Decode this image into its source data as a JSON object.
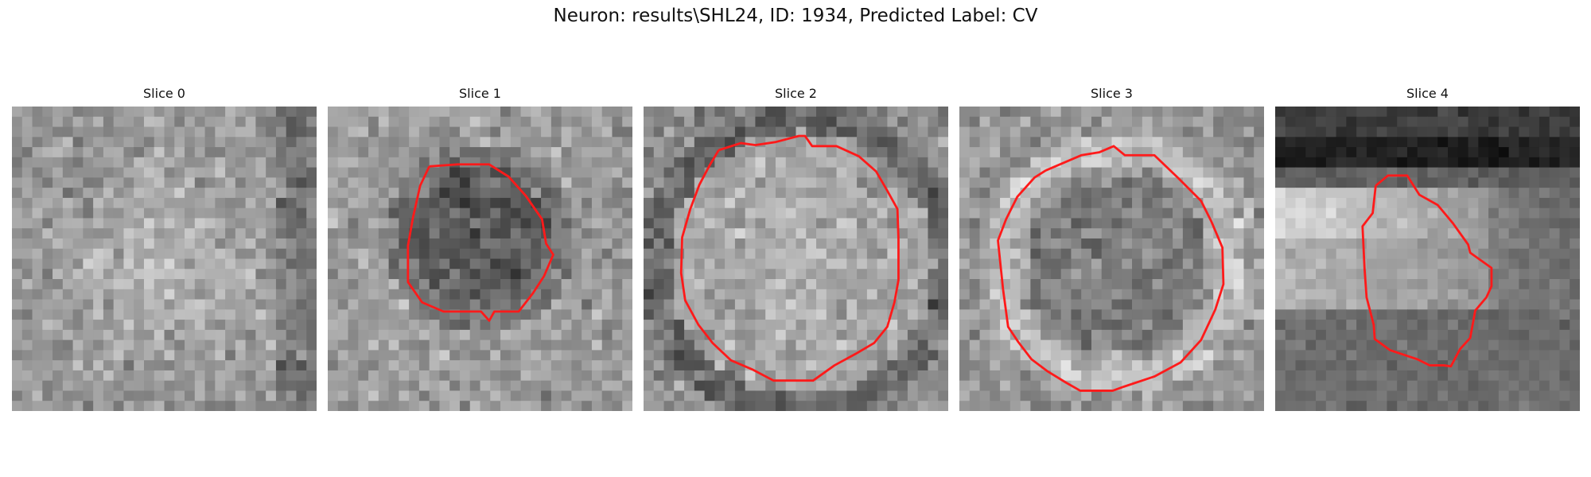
{
  "figure": {
    "title": "Neuron: results\\SHL24, ID: 1934, Predicted Label: CV",
    "contour_color": "#ff1a1a",
    "colormap": "gray",
    "grid_size": 30
  },
  "slices": [
    {
      "title": "Slice 0",
      "has_contour": false,
      "contour_grid": []
    },
    {
      "title": "Slice 1",
      "has_contour": true,
      "contour_grid": [
        [
          10,
          5.9
        ],
        [
          12.8,
          5.7
        ],
        [
          15.9,
          5.7
        ],
        [
          17.8,
          6.9
        ],
        [
          19.5,
          8.8
        ],
        [
          21.1,
          11.1
        ],
        [
          21.5,
          13.5
        ],
        [
          22.2,
          14.6
        ],
        [
          21.3,
          16.7
        ],
        [
          20.2,
          18.4
        ],
        [
          18.8,
          20.2
        ],
        [
          16.4,
          20.2
        ],
        [
          15.9,
          21.1
        ],
        [
          15.1,
          20.2
        ],
        [
          11.4,
          20.2
        ],
        [
          9.3,
          19.3
        ],
        [
          7.9,
          17.3
        ],
        [
          7.9,
          13.7
        ],
        [
          8.4,
          10.9
        ],
        [
          9.1,
          7.8
        ],
        [
          10,
          5.9
        ]
      ]
    },
    {
      "title": "Slice 2",
      "has_contour": true,
      "contour_grid": [
        [
          7.4,
          4.3
        ],
        [
          9.6,
          3.6
        ],
        [
          11,
          3.8
        ],
        [
          13,
          3.5
        ],
        [
          15.3,
          2.9
        ],
        [
          15.9,
          2.9
        ],
        [
          16.6,
          3.9
        ],
        [
          19,
          3.9
        ],
        [
          21.2,
          4.9
        ],
        [
          22.9,
          6.4
        ],
        [
          24,
          8.3
        ],
        [
          25,
          10.1
        ],
        [
          25.1,
          13.1
        ],
        [
          25.1,
          17.1
        ],
        [
          24.7,
          19.3
        ],
        [
          24,
          21.7
        ],
        [
          22.7,
          23.3
        ],
        [
          21,
          24.3
        ],
        [
          18.8,
          25.5
        ],
        [
          16.7,
          27
        ],
        [
          14.8,
          27
        ],
        [
          12.8,
          27
        ],
        [
          10.7,
          25.9
        ],
        [
          8.6,
          25
        ],
        [
          6.8,
          23.3
        ],
        [
          5.4,
          21.5
        ],
        [
          4.1,
          19.1
        ],
        [
          3.7,
          16.4
        ],
        [
          3.8,
          12.9
        ],
        [
          4.6,
          10.1
        ],
        [
          5.5,
          7.7
        ],
        [
          6.5,
          5.8
        ],
        [
          7.4,
          4.3
        ]
      ]
    },
    {
      "title": "Slice 3",
      "has_contour": true,
      "contour_grid": [
        [
          8.5,
          6.3
        ],
        [
          12,
          4.8
        ],
        [
          13.8,
          4.5
        ],
        [
          15.2,
          3.9
        ],
        [
          16.3,
          4.8
        ],
        [
          19.2,
          4.8
        ],
        [
          21.5,
          7
        ],
        [
          23.8,
          9.3
        ],
        [
          24.8,
          11.3
        ],
        [
          25.9,
          13.9
        ],
        [
          26,
          17.5
        ],
        [
          25.2,
          20
        ],
        [
          23.8,
          23
        ],
        [
          21.8,
          25.2
        ],
        [
          19.2,
          26.6
        ],
        [
          16.2,
          27.6
        ],
        [
          15.1,
          28
        ],
        [
          11.9,
          28
        ],
        [
          10.5,
          27.2
        ],
        [
          8.7,
          26.1
        ],
        [
          7.1,
          24.9
        ],
        [
          5.8,
          23.2
        ],
        [
          4.8,
          21.7
        ],
        [
          4.3,
          18
        ],
        [
          3.8,
          13.2
        ],
        [
          4.6,
          11.1
        ],
        [
          5.7,
          8.9
        ],
        [
          7.4,
          7
        ],
        [
          8.5,
          6.3
        ]
      ]
    },
    {
      "title": "Slice 4",
      "has_contour": true,
      "contour_grid": [
        [
          9.9,
          7.8
        ],
        [
          11.1,
          6.8
        ],
        [
          13,
          6.8
        ],
        [
          14.2,
          8.7
        ],
        [
          16,
          9.7
        ],
        [
          17.5,
          11.5
        ],
        [
          19,
          13.6
        ],
        [
          19.2,
          14.4
        ],
        [
          21.3,
          15.9
        ],
        [
          21.3,
          17.7
        ],
        [
          20.8,
          18.8
        ],
        [
          19.7,
          20.1
        ],
        [
          19.2,
          22.8
        ],
        [
          18.2,
          23.9
        ],
        [
          17.3,
          25.6
        ],
        [
          16.6,
          25.5
        ],
        [
          15.2,
          25.5
        ],
        [
          14,
          24.9
        ],
        [
          11.3,
          24
        ],
        [
          9.8,
          22.9
        ],
        [
          9.7,
          21.5
        ],
        [
          9,
          18.8
        ],
        [
          8.8,
          16
        ],
        [
          8.6,
          11.8
        ],
        [
          9.6,
          10.5
        ],
        [
          9.9,
          7.8
        ]
      ]
    }
  ]
}
